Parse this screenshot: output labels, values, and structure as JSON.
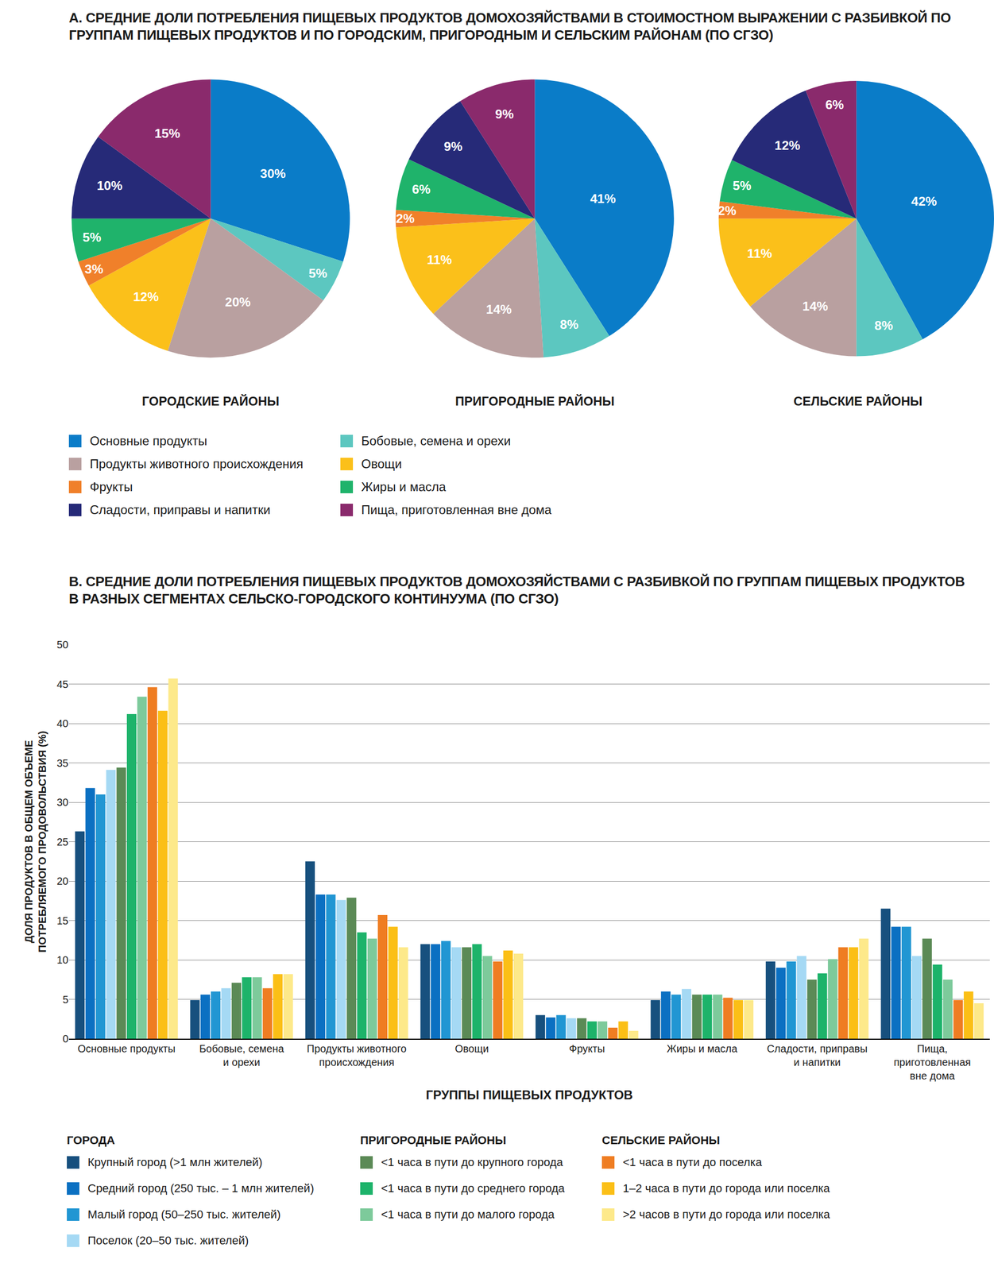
{
  "panel_a": {
    "title": "А. СРЕДНИЕ ДОЛИ ПОТРЕБЛЕНИЯ ПИЩЕВЫХ ПРОДУКТОВ ДОМОХОЗЯЙСТВАМИ В СТОИМОСТНОМ ВЫРАЖЕНИИ С РАЗБИВКОЙ ПО ГРУППАМ ПИЩЕВЫХ ПРОДУКТОВ И ПО ГОРОДСКИМ, ПРИГОРОДНЫМ И СЕЛЬСКИМ РАЙОНАМ (ПО СГЗО)"
  },
  "chart_data": [
    {
      "type": "pie",
      "title": "ГОРОДСКИЕ РАЙОНЫ",
      "categories": [
        "Основные продукты",
        "Бобовые, семена и орехи",
        "Продукты животного происхождения",
        "Овощи",
        "Фрукты",
        "Жиры и масла",
        "Сладости, приправы и напитки",
        "Пища, приготовленная вне дома"
      ],
      "values": [
        30,
        5,
        20,
        12,
        3,
        5,
        10,
        15
      ],
      "value_labels": [
        "30%",
        "5%",
        "20%",
        "12%",
        "3%",
        "5%",
        "10%",
        "15%"
      ],
      "colors": [
        "#0a7cc8",
        "#5cc7c0",
        "#b9a0a0",
        "#fbc01a",
        "#f0802a",
        "#1fb36b",
        "#262a78",
        "#8a2a6c"
      ],
      "data_labels": true
    },
    {
      "type": "pie",
      "title": "ПРИГОРОДНЫЕ РАЙОНЫ",
      "categories": [
        "Основные продукты",
        "Бобовые, семена и орехи",
        "Продукты животного происхождения",
        "Овощи",
        "Фрукты",
        "Жиры и масла",
        "Сладости, приправы и напитки",
        "Пища, приготовленная вне дома"
      ],
      "values": [
        41,
        8,
        14,
        11,
        2,
        6,
        9,
        9
      ],
      "value_labels": [
        "41%",
        "8%",
        "14%",
        "11%",
        "2%",
        "6%",
        "9%",
        "9%"
      ],
      "colors": [
        "#0a7cc8",
        "#5cc7c0",
        "#b9a0a0",
        "#fbc01a",
        "#f0802a",
        "#1fb36b",
        "#262a78",
        "#8a2a6c"
      ],
      "data_labels": true
    },
    {
      "type": "pie",
      "title": "СЕЛЬСКИЕ РАЙОНЫ",
      "categories": [
        "Основные продукты",
        "Бобовые, семена и орехи",
        "Продукты животного происхождения",
        "Овощи",
        "Фрукты",
        "Жиры и масла",
        "Сладости, приправы и напитки",
        "Пища, приготовленная вне дома"
      ],
      "values": [
        42,
        8,
        14,
        11,
        2,
        5,
        12,
        6
      ],
      "value_labels": [
        "42%",
        "8%",
        "14%",
        "11%",
        "2%",
        "5%",
        "12%",
        "6%"
      ],
      "colors": [
        "#0a7cc8",
        "#5cc7c0",
        "#b9a0a0",
        "#fbc01a",
        "#f0802a",
        "#1fb36b",
        "#262a78",
        "#8a2a6c"
      ],
      "data_labels": true
    },
    {
      "type": "bar",
      "title": "В. СРЕДНИЕ ДОЛИ ПОТРЕБЛЕНИЯ ПИЩЕВЫХ ПРОДУКТОВ ДОМОХОЗЯЙСТВАМИ С РАЗБИВКОЙ ПО ГРУППАМ ПИЩЕВЫХ ПРОДУКТОВ В РАЗНЫХ СЕГМЕНТАХ СЕЛЬСКО-ГОРОДСКОГО КОНТИНУУМА (ПО СГЗО)",
      "x_label": "ГРУППЫ ПИЩЕВЫХ ПРОДУКТОВ",
      "y_label": "ДОЛЯ ПРОДУКТОВ В ОБЩЕМ ОБЪЕМЕ\nПОТРЕБЛЯЕМОГО ПРОДОВОЛЬСТВИЯ (%)",
      "categories": [
        "Основные продукты",
        "Бобовые, семена\nи орехи",
        "Продукты животного\nпроисхождения",
        "Овощи",
        "Фрукты",
        "Жиры и масла",
        "Сладости, приправы\nи напитки",
        "Пища,\nприготовленная\nвне дома"
      ],
      "ylim": [
        0,
        50
      ],
      "yticks": [
        0,
        5,
        10,
        15,
        20,
        25,
        30,
        35,
        40,
        45,
        50
      ],
      "grid": true,
      "series": [
        {
          "group": "ГОРОДА",
          "name": "Крупный город (>1 млн жителей)",
          "color": "#17507e",
          "values": [
            26.3,
            4.9,
            22.5,
            12.0,
            3.0,
            4.9,
            9.8,
            16.5
          ]
        },
        {
          "group": "ГОРОДА",
          "name": "Средний город (250 тыс. – 1 млн жителей)",
          "color": "#0b70c2",
          "values": [
            31.8,
            5.6,
            18.3,
            12.0,
            2.7,
            6.0,
            9.0,
            14.2
          ]
        },
        {
          "group": "ГОРОДА",
          "name": "Малый город (50–250 тыс. жителей)",
          "color": "#2196d3",
          "values": [
            31.0,
            6.0,
            18.3,
            12.4,
            3.0,
            5.6,
            9.8,
            14.2
          ]
        },
        {
          "group": "ГОРОДА",
          "name": "Поселок (20–50 тыс. жителей)",
          "color": "#a5d9f4",
          "values": [
            34.1,
            6.4,
            17.6,
            11.6,
            2.6,
            6.3,
            10.5,
            10.5
          ]
        },
        {
          "group": "ПРИГОРОДНЫЕ РАЙОНЫ",
          "name": "<1 часа в пути до крупного города",
          "color": "#5b8a56",
          "values": [
            34.4,
            7.1,
            17.9,
            11.6,
            2.6,
            5.6,
            7.5,
            12.7
          ]
        },
        {
          "group": "ПРИГОРОДНЫЕ РАЙОНЫ",
          "name": "<1 часа в пути до среднего города",
          "color": "#1db36a",
          "values": [
            41.2,
            7.8,
            13.5,
            12.0,
            2.2,
            5.6,
            8.3,
            9.4
          ]
        },
        {
          "group": "ПРИГОРОДНЫЕ РАЙОНЫ",
          "name": "<1 часа в пути до малого города",
          "color": "#7dca9b",
          "values": [
            43.4,
            7.8,
            12.7,
            10.5,
            2.2,
            5.6,
            10.1,
            7.5
          ]
        },
        {
          "group": "СЕЛЬСКИЕ РАЙОНЫ",
          "name": "<1 часа в пути до поселка",
          "color": "#ef7d22",
          "values": [
            44.6,
            6.4,
            15.7,
            9.8,
            1.4,
            5.2,
            11.6,
            4.9
          ]
        },
        {
          "group": "СЕЛЬСКИЕ РАЙОНЫ",
          "name": "1–2 часа в пути до города или поселка",
          "color": "#fbbf16",
          "values": [
            41.6,
            8.2,
            14.2,
            11.2,
            2.2,
            4.9,
            11.6,
            6.0
          ]
        },
        {
          "group": "СЕЛЬСКИЕ РАЙОНЫ",
          "name": ">2 часов в пути до города или поселка",
          "color": "#fde98a",
          "values": [
            45.7,
            8.2,
            11.6,
            10.8,
            1.0,
            4.9,
            12.7,
            4.5
          ]
        }
      ]
    }
  ]
}
